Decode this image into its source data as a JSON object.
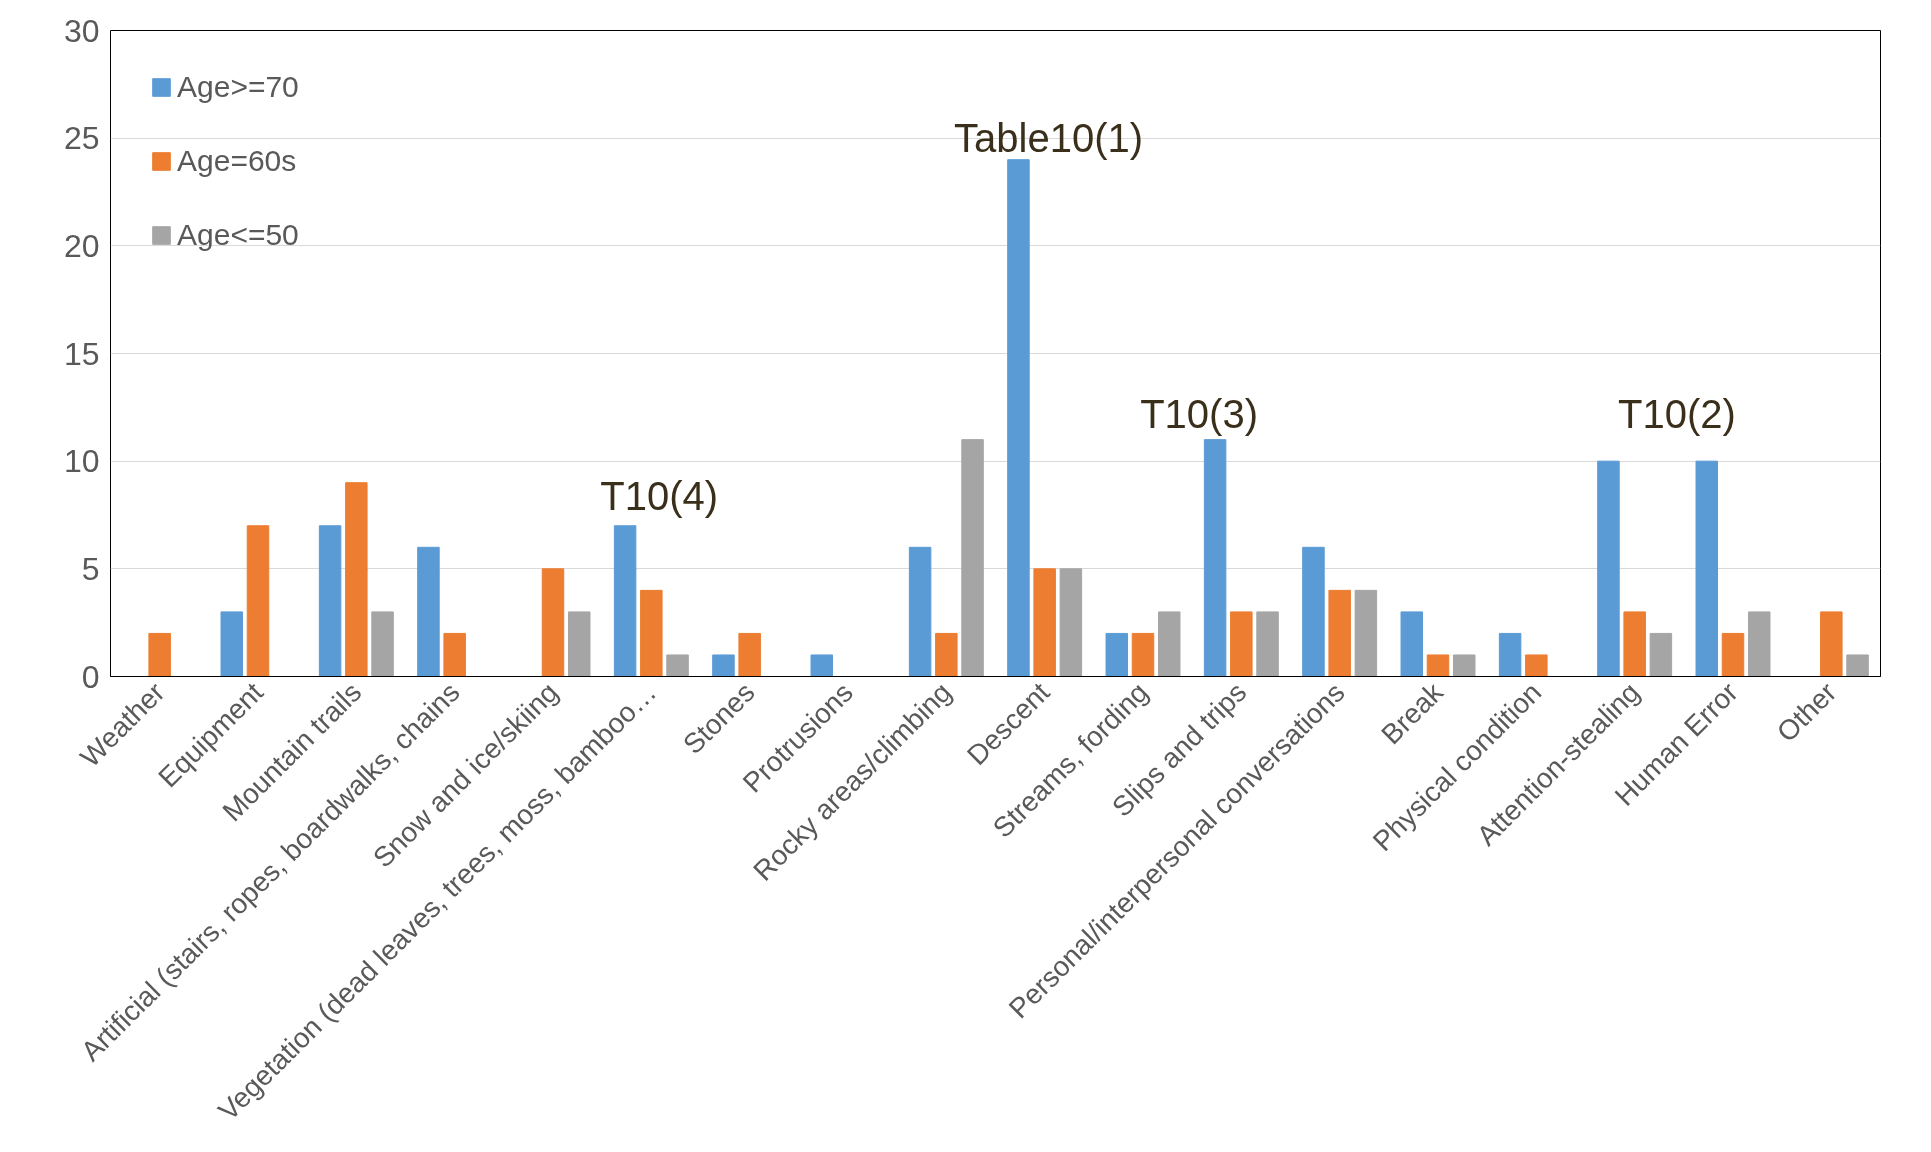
{
  "chart_data": {
    "type": "bar",
    "categories": [
      "Weather",
      "Equipment",
      "Mountain trails",
      "Artificial (stairs, ropes, boardwalks, chains",
      "Snow and ice/skiing",
      "Vegetation (dead leaves, trees, moss, bamboo…",
      "Stones",
      "Protrusions",
      "Rocky areas/climbing",
      "Descent",
      "Streams, fording",
      "Slips and trips",
      "Personal/interpersonal conversations",
      "Break",
      "Physical condition",
      "Attention-stealing",
      "Human Error",
      "Other"
    ],
    "series": [
      {
        "name": "Age>=70",
        "color": "#5b9bd5",
        "values": [
          0,
          3,
          7,
          6,
          0,
          7,
          1,
          1,
          6,
          24,
          2,
          11,
          6,
          3,
          2,
          10,
          10,
          0
        ]
      },
      {
        "name": "Age=60s",
        "color": "#ed7d31",
        "values": [
          2,
          7,
          9,
          2,
          5,
          4,
          2,
          0,
          2,
          5,
          2,
          3,
          4,
          1,
          1,
          3,
          2,
          3
        ]
      },
      {
        "name": "Age<=50",
        "color": "#a5a5a5",
        "values": [
          0,
          0,
          3,
          0,
          3,
          1,
          0,
          0,
          11,
          5,
          3,
          3,
          4,
          1,
          0,
          2,
          3,
          1
        ]
      }
    ],
    "ylim": [
      0,
      30
    ],
    "yticks": [
      0,
      5,
      10,
      15,
      20,
      25,
      30
    ],
    "grid": "y",
    "legend": "top left",
    "annotations": [
      "Table10(1)",
      "T10(4)",
      "T10(3)",
      "T10(2)"
    ]
  }
}
